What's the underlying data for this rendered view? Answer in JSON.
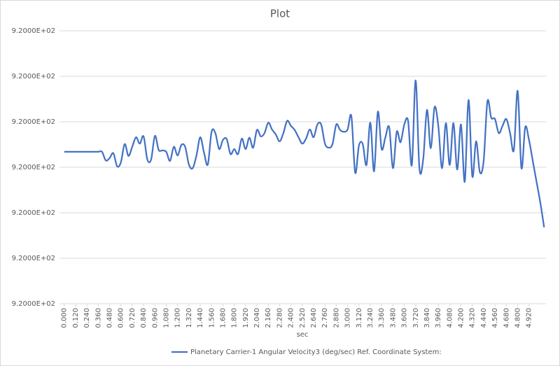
{
  "chart_data": {
    "type": "line",
    "title": "Plot",
    "x_label": "sec",
    "x": [
      0,
      0.04,
      0.08,
      0.12,
      0.16,
      0.2,
      0.24,
      0.28,
      0.32,
      0.36,
      0.4,
      0.44,
      0.48,
      0.52,
      0.56,
      0.6,
      0.64,
      0.68,
      0.72,
      0.76,
      0.8,
      0.84,
      0.88,
      0.92,
      0.96,
      1,
      1.04,
      1.08,
      1.12,
      1.16,
      1.2,
      1.24,
      1.28,
      1.32,
      1.36,
      1.4,
      1.44,
      1.48,
      1.52,
      1.56,
      1.6,
      1.64,
      1.68,
      1.72,
      1.76,
      1.8,
      1.84,
      1.88,
      1.92,
      1.96,
      2,
      2.04,
      2.08,
      2.12,
      2.16,
      2.2,
      2.24,
      2.28,
      2.32,
      2.36,
      2.4,
      2.44,
      2.48,
      2.52,
      2.56,
      2.6,
      2.64,
      2.68,
      2.72,
      2.76,
      2.8,
      2.84,
      2.88,
      2.92,
      2.96,
      3,
      3.04,
      3.08,
      3.12,
      3.16,
      3.2,
      3.24,
      3.28,
      3.32,
      3.36,
      3.4,
      3.44,
      3.48,
      3.52,
      3.56,
      3.6,
      3.64,
      3.68,
      3.72,
      3.76,
      3.8,
      3.84,
      3.88,
      3.92,
      3.96,
      4,
      4.04,
      4.08,
      4.12,
      4.16,
      4.2,
      4.24,
      4.28,
      4.32,
      4.36,
      4.4,
      4.44,
      4.48,
      4.52,
      4.56,
      4.6,
      4.64,
      4.68,
      4.72,
      4.76,
      4.8,
      4.84,
      4.88,
      4.92,
      4.96,
      5,
      5.04,
      5.08
    ],
    "series": [
      {
        "name": "Planetary Carrier-1 Angular Velocity3 (deg/sec) Ref. Coordinate System:",
        "color": "#4472c4",
        "values": [
          920.00034,
          920.00034,
          920.00034,
          920.00034,
          920.00034,
          920.00034,
          920.00034,
          920.00034,
          920.00034,
          920.00034,
          920.00034,
          920.00015,
          920.0002,
          920.00031,
          920.00002,
          920.00011,
          920.00051,
          920.00025,
          920.00045,
          920.00066,
          920.00052,
          920.00068,
          920.00017,
          920.00017,
          920.00069,
          920.00038,
          920.00037,
          920.00034,
          920.00014,
          920.00045,
          920.00026,
          920.00049,
          920.00045,
          920.00006,
          919.99998,
          920.00026,
          920.00066,
          920.00032,
          920.00006,
          920.00078,
          920.00075,
          920.0004,
          920.0006,
          920.00062,
          920.00029,
          920.0004,
          920.00029,
          920.00063,
          920.0004,
          920.00065,
          920.00043,
          920.00082,
          920.00068,
          920.00075,
          920.00098,
          920.00083,
          920.00072,
          920.00057,
          920.00075,
          920.00102,
          920.00091,
          920.00082,
          920.00066,
          920.00052,
          920.00063,
          920.00083,
          920.00066,
          920.00094,
          920.00094,
          920.00052,
          920.00043,
          920.00051,
          920.00094,
          920.00082,
          920.00078,
          920.00083,
          920.00112,
          919.99988,
          920.00048,
          920.00051,
          920.00005,
          920.00098,
          919.99991,
          920.00122,
          920.0004,
          920.00066,
          920.00088,
          919.99998,
          920.00078,
          920.00055,
          920.00094,
          920.00102,
          920.00005,
          920.00191,
          919.99998,
          920.00017,
          920.00126,
          920.00042,
          920.00132,
          920.00091,
          919.99998,
          920.00097,
          920.00005,
          920.00097,
          919.99995,
          920.00094,
          919.99968,
          920.00148,
          919.9998,
          920.00057,
          919.99989,
          920.00014,
          920.00145,
          920.00109,
          920.00106,
          920.00075,
          920.00091,
          920.00106,
          920.00075,
          920.00038,
          920.00168,
          919.99998,
          920.00088,
          920.0006,
          920.00014,
          919.99968,
          919.99922,
          919.99868
        ]
      }
    ],
    "xlim": [
      -0.05,
      5.1
    ],
    "xticks": [
      {
        "value": 0,
        "label": "0.000"
      },
      {
        "value": 0.12,
        "label": "0.120"
      },
      {
        "value": 0.24,
        "label": "0.240"
      },
      {
        "value": 0.36,
        "label": "0.360"
      },
      {
        "value": 0.48,
        "label": "0.480"
      },
      {
        "value": 0.6,
        "label": "0.600"
      },
      {
        "value": 0.72,
        "label": "0.720"
      },
      {
        "value": 0.84,
        "label": "0.840"
      },
      {
        "value": 0.96,
        "label": "0.960"
      },
      {
        "value": 1.08,
        "label": "1.080"
      },
      {
        "value": 1.2,
        "label": "1.200"
      },
      {
        "value": 1.32,
        "label": "1.320"
      },
      {
        "value": 1.44,
        "label": "1.440"
      },
      {
        "value": 1.56,
        "label": "1.560"
      },
      {
        "value": 1.68,
        "label": "1.680"
      },
      {
        "value": 1.8,
        "label": "1.800"
      },
      {
        "value": 1.92,
        "label": "1.920"
      },
      {
        "value": 2.04,
        "label": "2.040"
      },
      {
        "value": 2.16,
        "label": "2.160"
      },
      {
        "value": 2.28,
        "label": "2.280"
      },
      {
        "value": 2.4,
        "label": "2.400"
      },
      {
        "value": 2.52,
        "label": "2.520"
      },
      {
        "value": 2.64,
        "label": "2.640"
      },
      {
        "value": 2.76,
        "label": "2.760"
      },
      {
        "value": 2.88,
        "label": "2.880"
      },
      {
        "value": 3,
        "label": "3.000"
      },
      {
        "value": 3.12,
        "label": "3.120"
      },
      {
        "value": 3.24,
        "label": "3.240"
      },
      {
        "value": 3.36,
        "label": "3.360"
      },
      {
        "value": 3.48,
        "label": "3.480"
      },
      {
        "value": 3.6,
        "label": "3.600"
      },
      {
        "value": 3.72,
        "label": "3.720"
      },
      {
        "value": 3.84,
        "label": "3.840"
      },
      {
        "value": 3.96,
        "label": "3.960"
      },
      {
        "value": 4.08,
        "label": "4.080"
      },
      {
        "value": 4.2,
        "label": "4.200"
      },
      {
        "value": 4.32,
        "label": "4.320"
      },
      {
        "value": 4.44,
        "label": "4.440"
      },
      {
        "value": 4.56,
        "label": "4.560"
      },
      {
        "value": 4.68,
        "label": "4.680"
      },
      {
        "value": 4.8,
        "label": "4.800"
      },
      {
        "value": 4.92,
        "label": "4.920"
      }
    ],
    "ylim": [
      919.997,
      920.003
    ],
    "yticks": [
      {
        "value": 919.997,
        "label": "9.2000E+02"
      },
      {
        "value": 919.998,
        "label": "9.2000E+02"
      },
      {
        "value": 919.999,
        "label": "9.2000E+02"
      },
      {
        "value": 920,
        "label": "9.2000E+02"
      },
      {
        "value": 920.001,
        "label": "9.2000E+02"
      },
      {
        "value": 920.002,
        "label": "9.2000E+02"
      },
      {
        "value": 920.003,
        "label": "9.2000E+02"
      }
    ],
    "grid": true,
    "legend": "bottom"
  }
}
